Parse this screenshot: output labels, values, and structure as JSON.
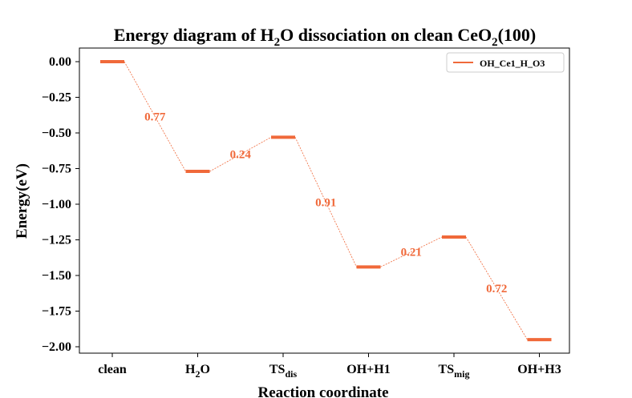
{
  "chart_data": {
    "type": "line",
    "title": "Energy diagram of H₂O dissociation on clean CeO₂(100)",
    "title_parts": {
      "t1": "Energy diagram of H",
      "s1": "2",
      "t2": "O dissociation on clean CeO",
      "s2": "2",
      "t3": "(100)"
    },
    "xlabel": "Reaction coordinate",
    "ylabel": "Energy(eV)",
    "ylim": [
      -2.05,
      0.07
    ],
    "yticks": [
      "0.00",
      "−0.25",
      "−0.50",
      "−0.75",
      "−1.00",
      "−1.25",
      "−1.50",
      "−1.75",
      "−2.00"
    ],
    "ytick_values": [
      0,
      -0.25,
      -0.5,
      -0.75,
      -1.0,
      -1.25,
      -1.5,
      -1.75,
      -2.0
    ],
    "categories": [
      {
        "main": "clean",
        "sub": "",
        "tail": ""
      },
      {
        "main": "H",
        "sub": "2",
        "tail": "O"
      },
      {
        "main": "TS",
        "sub": "dis",
        "tail": ""
      },
      {
        "main": "OH+H1",
        "sub": "",
        "tail": ""
      },
      {
        "main": "TS",
        "sub": "mig",
        "tail": ""
      },
      {
        "main": "OH+H3",
        "sub": "",
        "tail": ""
      }
    ],
    "series": [
      {
        "name": "OH_Ce1_H_O3",
        "color": "#f0693a",
        "values": [
          0.0,
          -0.77,
          -0.53,
          -1.44,
          -1.23,
          -1.95
        ]
      }
    ],
    "barriers": [
      "0.77",
      "0.24",
      "0.91",
      "0.21",
      "0.72"
    ],
    "legend_position": "top-right",
    "grid": false
  }
}
